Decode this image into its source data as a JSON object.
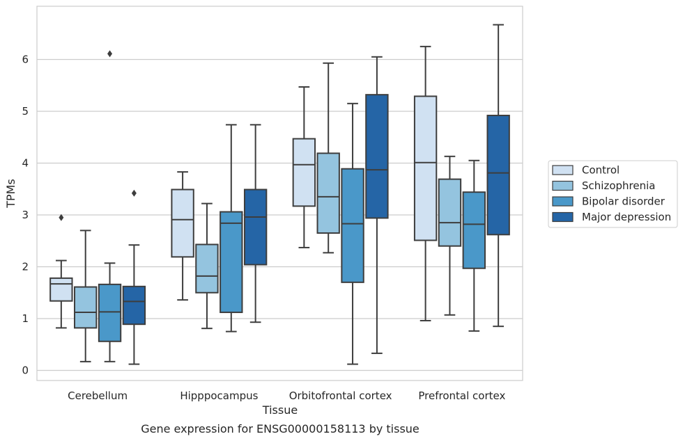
{
  "chart_data": {
    "type": "boxplot",
    "caption": "Gene expression for ENSG00000158113 by tissue",
    "xlabel": "Tissue",
    "ylabel": "TPMs",
    "ylim": [
      -0.2,
      7.0
    ],
    "yticks": [
      0,
      1,
      2,
      3,
      4,
      5,
      6
    ],
    "grid": "horizontal",
    "legend_position": "right",
    "categories": [
      "Cerebellum",
      "Hipppocampus",
      "Orbitofrontal cortex",
      "Prefrontal cortex"
    ],
    "series": [
      {
        "name": "Control",
        "color": "#d0e1f2",
        "boxes": [
          {
            "whislo": 0.82,
            "q1": 1.34,
            "med": 1.67,
            "q3": 1.78,
            "whishi": 2.12,
            "fliers": [
              2.95
            ]
          },
          {
            "whislo": 1.36,
            "q1": 2.19,
            "med": 2.91,
            "q3": 3.49,
            "whishi": 3.83,
            "fliers": []
          },
          {
            "whislo": 2.37,
            "q1": 3.17,
            "med": 3.97,
            "q3": 4.47,
            "whishi": 5.47,
            "fliers": []
          },
          {
            "whislo": 0.96,
            "q1": 2.51,
            "med": 4.01,
            "q3": 5.29,
            "whishi": 6.25,
            "fliers": []
          }
        ]
      },
      {
        "name": "Schizophrenia",
        "color": "#94c4df",
        "boxes": [
          {
            "whislo": 0.17,
            "q1": 0.82,
            "med": 1.12,
            "q3": 1.61,
            "whishi": 2.7,
            "fliers": []
          },
          {
            "whislo": 0.81,
            "q1": 1.5,
            "med": 1.82,
            "q3": 2.43,
            "whishi": 3.22,
            "fliers": []
          },
          {
            "whislo": 2.27,
            "q1": 2.65,
            "med": 3.35,
            "q3": 4.19,
            "whishi": 5.93,
            "fliers": []
          },
          {
            "whislo": 1.07,
            "q1": 2.4,
            "med": 2.85,
            "q3": 3.69,
            "whishi": 4.13,
            "fliers": []
          }
        ]
      },
      {
        "name": "Bipolar disorder",
        "color": "#4a98c9",
        "boxes": [
          {
            "whislo": 0.17,
            "q1": 0.56,
            "med": 1.13,
            "q3": 1.66,
            "whishi": 2.07,
            "fliers": [
              6.11
            ]
          },
          {
            "whislo": 0.75,
            "q1": 1.12,
            "med": 2.84,
            "q3": 3.06,
            "whishi": 4.74,
            "fliers": []
          },
          {
            "whislo": 0.12,
            "q1": 1.7,
            "med": 2.83,
            "q3": 3.89,
            "whishi": 5.15,
            "fliers": []
          },
          {
            "whislo": 0.76,
            "q1": 1.97,
            "med": 2.82,
            "q3": 3.44,
            "whishi": 4.05,
            "fliers": []
          }
        ]
      },
      {
        "name": "Major depression",
        "color": "#2565a6",
        "boxes": [
          {
            "whislo": 0.12,
            "q1": 0.89,
            "med": 1.33,
            "q3": 1.62,
            "whishi": 2.42,
            "fliers": [
              3.42
            ]
          },
          {
            "whislo": 0.93,
            "q1": 2.04,
            "med": 2.96,
            "q3": 3.49,
            "whishi": 4.74,
            "fliers": []
          },
          {
            "whislo": 0.33,
            "q1": 2.94,
            "med": 3.87,
            "q3": 5.32,
            "whishi": 6.05,
            "fliers": []
          },
          {
            "whislo": 0.85,
            "q1": 2.62,
            "med": 3.81,
            "q3": 4.92,
            "whishi": 6.67,
            "fliers": []
          }
        ]
      }
    ]
  }
}
